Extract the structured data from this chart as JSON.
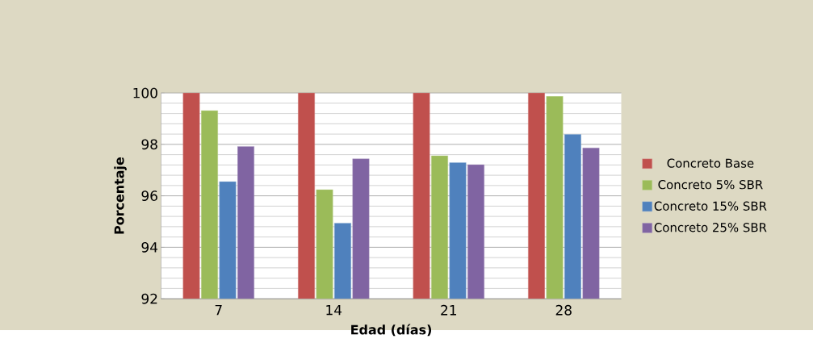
{
  "chart_data": {
    "type": "bar",
    "xlabel": "Edad (días)",
    "ylabel": "Porcentaje",
    "categories": [
      "7",
      "14",
      "21",
      "28"
    ],
    "series": [
      {
        "name": "Concreto Base",
        "color": "#c0504d",
        "values": [
          100,
          100,
          100,
          100
        ]
      },
      {
        "name": "Concreto 5% SBR",
        "color": "#9bbb59",
        "values": [
          99.31,
          96.24,
          97.56,
          99.87
        ]
      },
      {
        "name": "Concreto 15% SBR",
        "color": "#4f81bd",
        "values": [
          96.55,
          94.94,
          97.29,
          98.39
        ]
      },
      {
        "name": "Concreto 25% SBR",
        "color": "#8064a2",
        "values": [
          97.92,
          97.44,
          97.21,
          97.86
        ]
      }
    ],
    "ylim": [
      92,
      100
    ],
    "yticks": [
      92,
      94,
      96,
      98,
      100
    ],
    "grid": "y",
    "legend": "right"
  }
}
